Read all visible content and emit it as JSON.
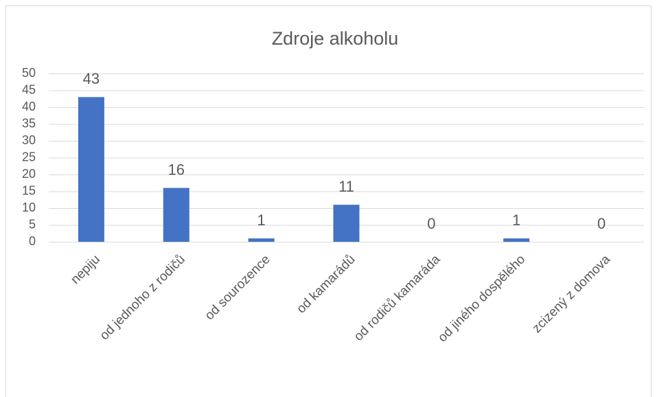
{
  "chart_data": {
    "type": "bar",
    "title": "Zdroje alkoholu",
    "categories": [
      "nepiju",
      "od jednoho z rodičů",
      "od sourozence",
      "od kamarádů",
      "od rodičů kamaráda",
      "od jiného dospělého",
      "zcizený z domova"
    ],
    "values": [
      43,
      16,
      1,
      11,
      0,
      1,
      0
    ],
    "color": "#4472c4",
    "ylim": [
      0,
      50
    ],
    "yticks": [
      0,
      5,
      10,
      15,
      20,
      25,
      30,
      35,
      40,
      45,
      50
    ],
    "grid": true
  }
}
